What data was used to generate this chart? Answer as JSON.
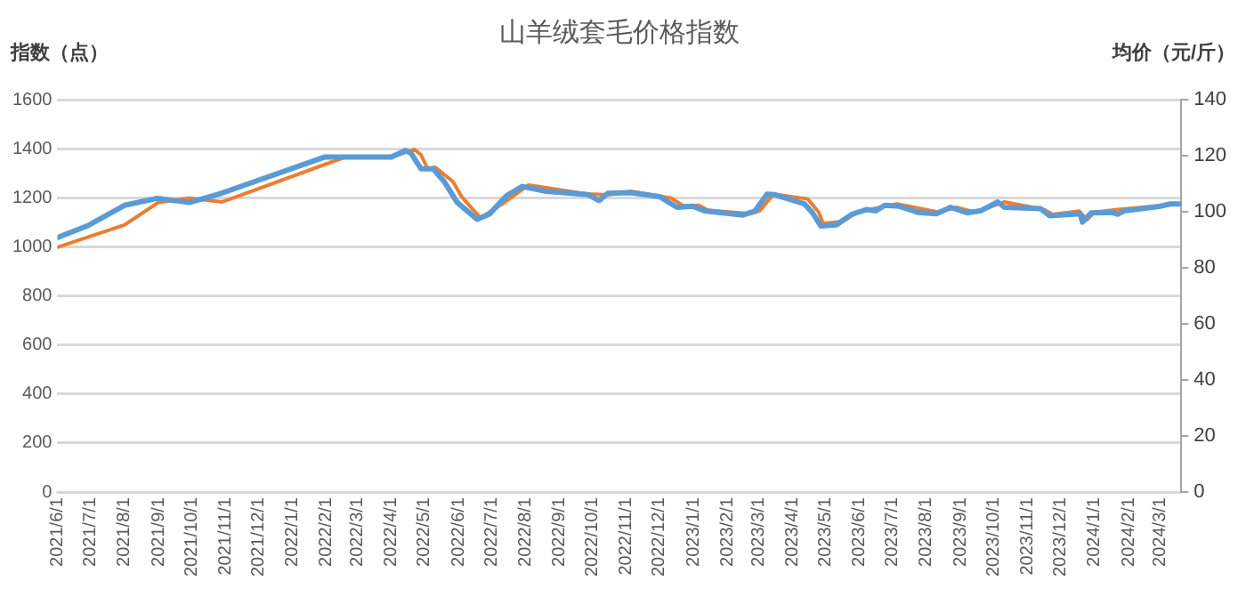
{
  "chart_data": {
    "type": "line",
    "title": "山羊绒套毛价格指数",
    "ylabel": "指数（点）",
    "y2label": "均价（元/斤）",
    "xlim": [
      "2021-06-01",
      "2024-03-20"
    ],
    "xticks": [
      {
        "value": "2021-06-01",
        "label": "2021/6/1"
      },
      {
        "value": "2021-07-01",
        "label": "2021/7/1"
      },
      {
        "value": "2021-08-01",
        "label": "2021/8/1"
      },
      {
        "value": "2021-09-01",
        "label": "2021/9/1"
      },
      {
        "value": "2021-10-01",
        "label": "2021/10/1"
      },
      {
        "value": "2021-11-01",
        "label": "2021/11/1"
      },
      {
        "value": "2021-12-01",
        "label": "2021/12/1"
      },
      {
        "value": "2022-01-01",
        "label": "2022/1/1"
      },
      {
        "value": "2022-02-01",
        "label": "2022/2/1"
      },
      {
        "value": "2022-03-01",
        "label": "2022/3/1"
      },
      {
        "value": "2022-04-01",
        "label": "2022/4/1"
      },
      {
        "value": "2022-05-01",
        "label": "2022/5/1"
      },
      {
        "value": "2022-06-01",
        "label": "2022/6/1"
      },
      {
        "value": "2022-07-01",
        "label": "2022/7/1"
      },
      {
        "value": "2022-08-01",
        "label": "2022/8/1"
      },
      {
        "value": "2022-09-01",
        "label": "2022/9/1"
      },
      {
        "value": "2022-10-01",
        "label": "2022/10/1"
      },
      {
        "value": "2022-11-01",
        "label": "2022/11/1"
      },
      {
        "value": "2022-12-01",
        "label": "2022/12/1"
      },
      {
        "value": "2023-01-01",
        "label": "2023/1/1"
      },
      {
        "value": "2023-02-01",
        "label": "2023/2/1"
      },
      {
        "value": "2023-03-01",
        "label": "2023/3/1"
      },
      {
        "value": "2023-04-01",
        "label": "2023/4/1"
      },
      {
        "value": "2023-05-01",
        "label": "2023/5/1"
      },
      {
        "value": "2023-06-01",
        "label": "2023/6/1"
      },
      {
        "value": "2023-07-01",
        "label": "2023/7/1"
      },
      {
        "value": "2023-08-01",
        "label": "2023/8/1"
      },
      {
        "value": "2023-09-01",
        "label": "2023/9/1"
      },
      {
        "value": "2023-10-01",
        "label": "2023/10/1"
      },
      {
        "value": "2023-11-01",
        "label": "2023/11/1"
      },
      {
        "value": "2023-12-01",
        "label": "2023/12/1"
      },
      {
        "value": "2024-01-01",
        "label": "2024/1/1"
      },
      {
        "value": "2024-02-01",
        "label": "2024/2/1"
      },
      {
        "value": "2024-03-01",
        "label": "2024/3/1"
      }
    ],
    "ylim": [
      0,
      1600
    ],
    "yticks": [
      0,
      200,
      400,
      600,
      800,
      1000,
      1200,
      1400,
      1600
    ],
    "y2lim": [
      0,
      140
    ],
    "y2ticks": [
      0,
      20,
      40,
      60,
      80,
      100,
      120,
      140
    ],
    "grid": "y",
    "legend": false,
    "marker": "none",
    "line_style": "solid",
    "series": [
      {
        "color": "#ed7d31",
        "x": [
          "2021-06-01",
          "2021-08-01",
          "2021-09-01",
          "2021-09-29",
          "2021-10-29",
          "2022-02-18",
          "2022-04-01",
          "2022-04-22",
          "2022-04-28",
          "2022-05-04",
          "2022-05-11",
          "2022-05-27",
          "2022-06-04",
          "2022-06-21",
          "2022-07-13",
          "2022-08-04",
          "2022-09-27",
          "2022-10-15",
          "2022-11-05",
          "2022-12-12",
          "2022-12-23",
          "2023-01-06",
          "2023-01-14",
          "2023-02-22",
          "2023-03-02",
          "2023-03-15",
          "2023-04-15",
          "2023-04-25",
          "2023-04-29",
          "2023-05-17",
          "2023-05-30",
          "2023-07-05",
          "2023-08-12",
          "2023-08-28",
          "2023-09-14",
          "2023-10-11",
          "2023-11-16",
          "2023-11-24",
          "2023-12-18",
          "2023-12-25",
          "2024-01-01",
          "2024-01-22",
          "2024-03-18"
        ],
        "values": [
          998,
          1089,
          1181,
          1198,
          1183,
          1366,
          1366,
          1397,
          1375,
          1318,
          1324,
          1266,
          1204,
          1118,
          1181,
          1252,
          1215,
          1212,
          1226,
          1198,
          1166,
          1169,
          1149,
          1135,
          1146,
          1215,
          1195,
          1141,
          1095,
          1104,
          1141,
          1175,
          1141,
          1161,
          1141,
          1183,
          1152,
          1132,
          1146,
          1110,
          1141,
          1152,
          1175
        ]
      },
      {
        "color": "#5b9bd5",
        "axis": "y2",
        "x": [
          "2021-06-01",
          "2021-06-28",
          "2021-08-01",
          "2021-08-31",
          "2021-09-29",
          "2021-10-26",
          "2022-01-30",
          "2022-04-01",
          "2022-04-14",
          "2022-04-19",
          "2022-04-28",
          "2022-05-09",
          "2022-05-19",
          "2022-05-31",
          "2022-06-18",
          "2022-06-29",
          "2022-07-15",
          "2022-07-29",
          "2022-08-20",
          "2022-09-27",
          "2022-10-07",
          "2022-10-15",
          "2022-11-05",
          "2022-12-01",
          "2022-12-17",
          "2022-12-31",
          "2023-01-11",
          "2023-02-15",
          "2023-02-26",
          "2023-03-09",
          "2023-03-16",
          "2023-04-12",
          "2023-04-19",
          "2023-04-27",
          "2023-05-11",
          "2023-05-25",
          "2023-06-08",
          "2023-06-16",
          "2023-06-24",
          "2023-07-07",
          "2023-07-24",
          "2023-08-10",
          "2023-08-23",
          "2023-09-07",
          "2023-09-19",
          "2023-10-05",
          "2023-10-11",
          "2023-11-13",
          "2023-11-21",
          "2023-12-19",
          "2023-12-21",
          "2023-12-29",
          "2024-01-17",
          "2024-01-22",
          "2024-01-28",
          "2024-02-29",
          "2024-03-10",
          "2024-03-18"
        ],
        "values": [
          90.8,
          94.9,
          102.3,
          104.8,
          103.3,
          106.3,
          119.5,
          119.5,
          121.9,
          120.8,
          115.3,
          115.3,
          110.8,
          103.3,
          97.3,
          99.1,
          105.8,
          109.0,
          107.3,
          106.1,
          104.0,
          106.6,
          106.8,
          105.4,
          101.6,
          102.0,
          100.3,
          98.8,
          100.3,
          106.3,
          106.1,
          102.8,
          99.8,
          94.9,
          95.3,
          99.1,
          100.8,
          100.3,
          102.3,
          102.0,
          99.8,
          99.3,
          101.6,
          99.6,
          100.3,
          103.5,
          101.6,
          101.1,
          98.6,
          99.3,
          96.3,
          99.6,
          99.8,
          99.1,
          100.3,
          101.9,
          102.8,
          102.8
        ]
      }
    ]
  }
}
